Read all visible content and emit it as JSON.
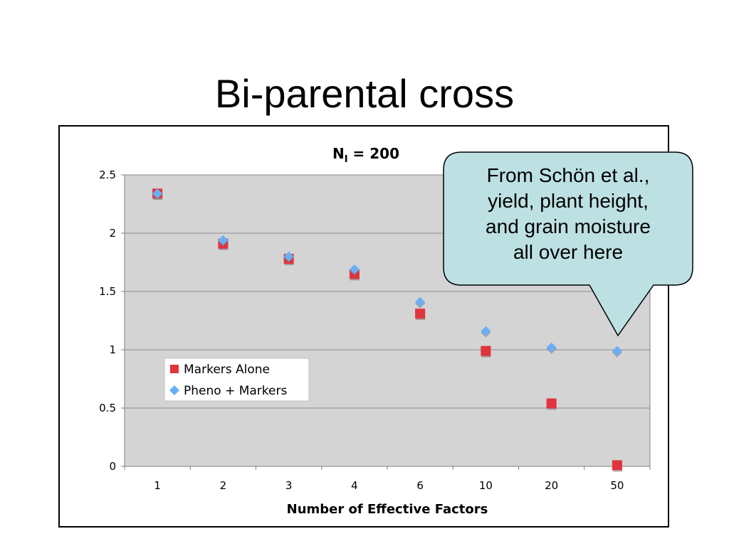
{
  "slide": {
    "title": "Bi-parental cross"
  },
  "callout": {
    "lines": [
      "From Schön et al.,",
      "yield, plant height,",
      "and grain moisture",
      "all over here"
    ],
    "fill": "#bde0e3",
    "stroke": "#000000"
  },
  "chart_data": {
    "type": "scatter",
    "title_main": "N",
    "title_sub": "I",
    "title_rest": " = 200",
    "xlabel": "Number of Effective Factors",
    "ylabel": "",
    "categories": [
      "1",
      "2",
      "3",
      "4",
      "6",
      "10",
      "20",
      "50"
    ],
    "ylim": [
      0,
      2.5
    ],
    "yticks": [
      "0",
      "0.5",
      "1",
      "1.5",
      "2",
      "2.5"
    ],
    "ytick_values": [
      0,
      0.5,
      1,
      1.5,
      2,
      2.5
    ],
    "grid": true,
    "plot_bg": "#d4d4d4",
    "legend_position": "lower-left",
    "series": [
      {
        "name": "Markers Alone",
        "marker": "square",
        "color": "#e0343e",
        "values": [
          2.34,
          1.91,
          1.78,
          1.65,
          1.31,
          0.99,
          0.54,
          0.01
        ]
      },
      {
        "name": "Pheno + Markers",
        "marker": "diamond",
        "color": "#6aaef5",
        "values": [
          2.34,
          1.94,
          1.8,
          1.69,
          1.41,
          1.16,
          1.02,
          0.99
        ]
      }
    ]
  }
}
